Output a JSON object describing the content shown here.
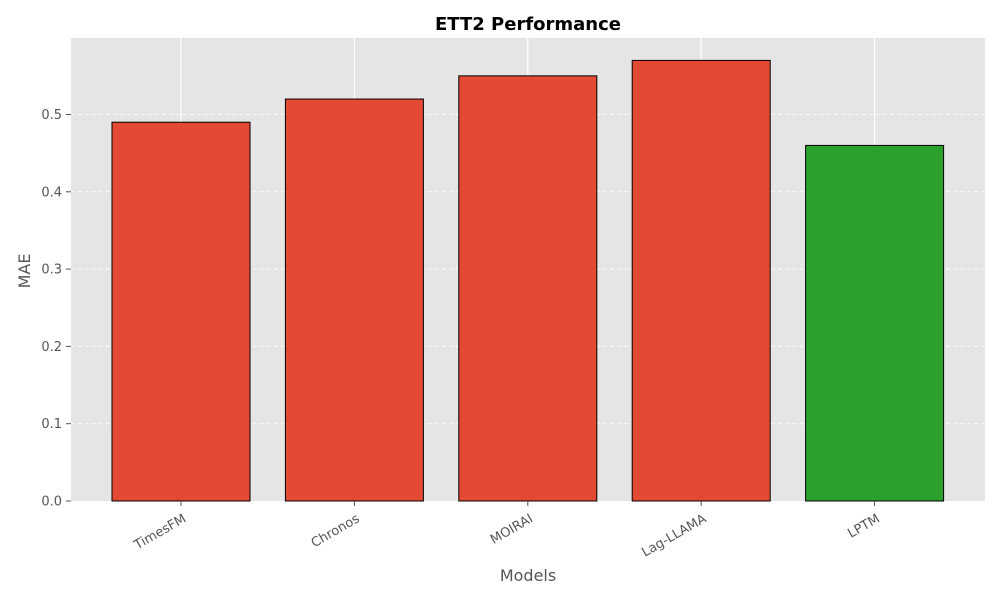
{
  "chart_data": {
    "type": "bar",
    "title": "ETT2 Performance",
    "xlabel": "Models",
    "ylabel": "MAE",
    "categories": [
      "TimesFM",
      "Chronos",
      "MOIRAI",
      "Lag-LLAMA",
      "LPTM"
    ],
    "values": [
      0.49,
      0.52,
      0.55,
      0.57,
      0.46
    ],
    "bar_colors": [
      "#E24A33",
      "#E24A33",
      "#E24A33",
      "#E24A33",
      "#2CA02C"
    ],
    "ylim": [
      0,
      0.6
    ],
    "yticks": [
      "0.0",
      "0.1",
      "0.2",
      "0.3",
      "0.4",
      "0.5"
    ],
    "grid": true,
    "legend": false,
    "plot_background": "#E5E5E5",
    "bar_edge_color": "#000000"
  }
}
